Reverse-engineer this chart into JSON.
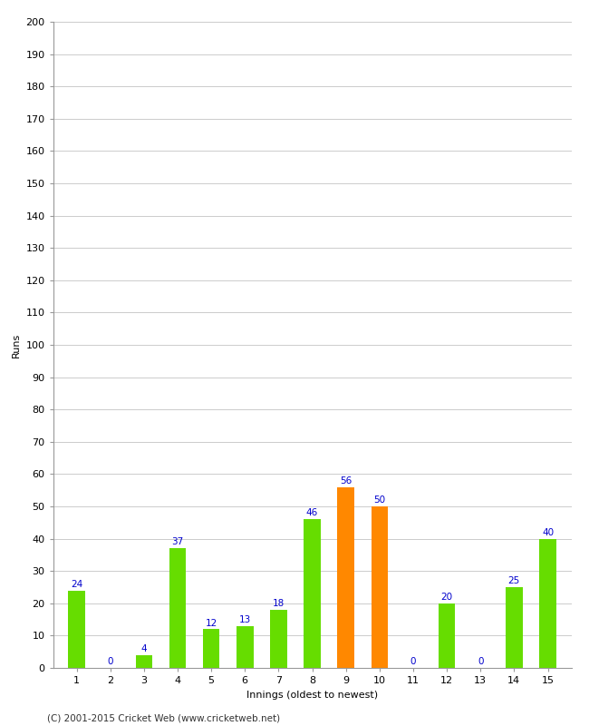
{
  "innings": [
    1,
    2,
    3,
    4,
    5,
    6,
    7,
    8,
    9,
    10,
    11,
    12,
    13,
    14,
    15
  ],
  "runs": [
    24,
    0,
    4,
    37,
    12,
    13,
    18,
    46,
    56,
    50,
    0,
    20,
    0,
    25,
    40
  ],
  "colors": [
    "#66dd00",
    "#66dd00",
    "#66dd00",
    "#66dd00",
    "#66dd00",
    "#66dd00",
    "#66dd00",
    "#66dd00",
    "#ff8800",
    "#ff8800",
    "#66dd00",
    "#66dd00",
    "#66dd00",
    "#66dd00",
    "#66dd00"
  ],
  "xlabel": "Innings (oldest to newest)",
  "ylabel": "Runs",
  "ylim": [
    0,
    200
  ],
  "yticks": [
    0,
    10,
    20,
    30,
    40,
    50,
    60,
    70,
    80,
    90,
    100,
    110,
    120,
    130,
    140,
    150,
    160,
    170,
    180,
    190,
    200
  ],
  "label_color": "#0000cc",
  "label_fontsize": 7.5,
  "axis_label_fontsize": 8,
  "tick_fontsize": 8,
  "footer": "(C) 2001-2015 Cricket Web (www.cricketweb.net)",
  "background_color": "#ffffff",
  "grid_color": "#cccccc",
  "bar_width": 0.5
}
